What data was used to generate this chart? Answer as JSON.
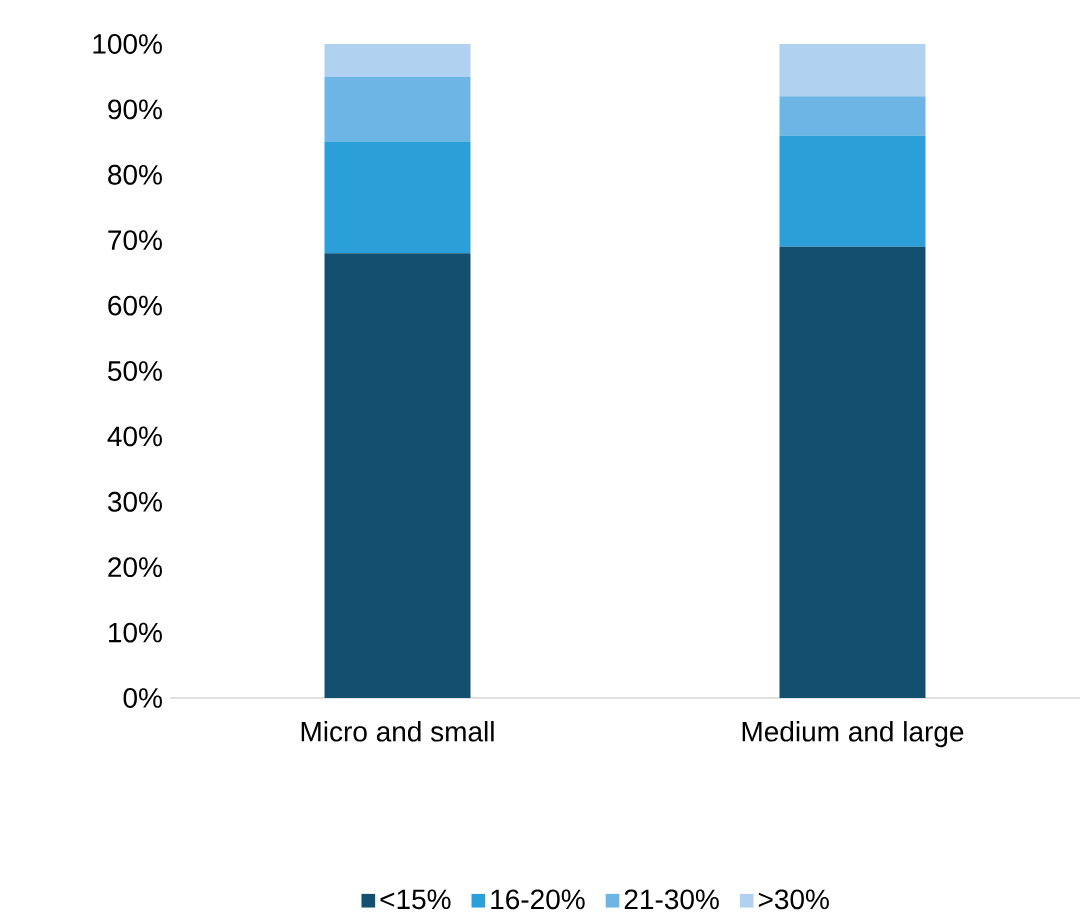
{
  "chart_data": {
    "type": "bar",
    "stacked": true,
    "categories": [
      "Micro and small",
      "Medium and large"
    ],
    "series": [
      {
        "name": "<15%",
        "color": "#13506f",
        "values": [
          68,
          69
        ]
      },
      {
        "name": "16-20%",
        "color": "#2a9fd8",
        "values": [
          17,
          17
        ]
      },
      {
        "name": "21-30%",
        "color": "#6db5e5",
        "values": [
          10,
          6
        ]
      },
      {
        "name": ">30%",
        "color": "#b0d1ef",
        "values": [
          5,
          8
        ]
      }
    ],
    "ylim": [
      0,
      100
    ],
    "yticks": [
      {
        "value": 0,
        "label": "0%"
      },
      {
        "value": 10,
        "label": "10%"
      },
      {
        "value": 20,
        "label": "20%"
      },
      {
        "value": 30,
        "label": "30%"
      },
      {
        "value": 40,
        "label": "40%"
      },
      {
        "value": 50,
        "label": "50%"
      },
      {
        "value": 60,
        "label": "60%"
      },
      {
        "value": 70,
        "label": "70%"
      },
      {
        "value": 80,
        "label": "80%"
      },
      {
        "value": 90,
        "label": "90%"
      },
      {
        "value": 100,
        "label": "100%"
      }
    ],
    "legend": "bottom"
  }
}
